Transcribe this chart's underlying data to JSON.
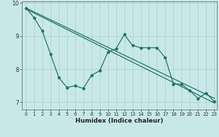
{
  "background_color": "#c8e8e8",
  "grid_color": "#aacccc",
  "line_color": "#1e7068",
  "xlabel": "Humidex (Indice chaleur)",
  "xlim_min": -0.5,
  "xlim_max": 23.3,
  "ylim_min": 6.78,
  "ylim_max": 10.05,
  "yticks": [
    7,
    8,
    9,
    10
  ],
  "xticks": [
    0,
    1,
    2,
    3,
    4,
    5,
    6,
    7,
    8,
    9,
    10,
    11,
    12,
    13,
    14,
    15,
    16,
    17,
    18,
    19,
    20,
    21,
    22,
    23
  ],
  "main_x": [
    0,
    1,
    2,
    3,
    4,
    5,
    6,
    7,
    8,
    9,
    10,
    11,
    12,
    13,
    14,
    15,
    16,
    17,
    18,
    19,
    20,
    21,
    22,
    23
  ],
  "main_y": [
    9.85,
    9.55,
    9.15,
    8.45,
    7.75,
    7.45,
    7.5,
    7.42,
    7.82,
    7.95,
    8.52,
    8.62,
    9.05,
    8.72,
    8.65,
    8.65,
    8.65,
    8.35,
    7.55,
    7.55,
    7.35,
    7.12,
    7.28,
    7.02
  ],
  "trend1_x": [
    0,
    23
  ],
  "trend1_y": [
    9.85,
    7.12
  ],
  "trend2_x": [
    0,
    23
  ],
  "trend2_y": [
    9.82,
    6.98
  ]
}
